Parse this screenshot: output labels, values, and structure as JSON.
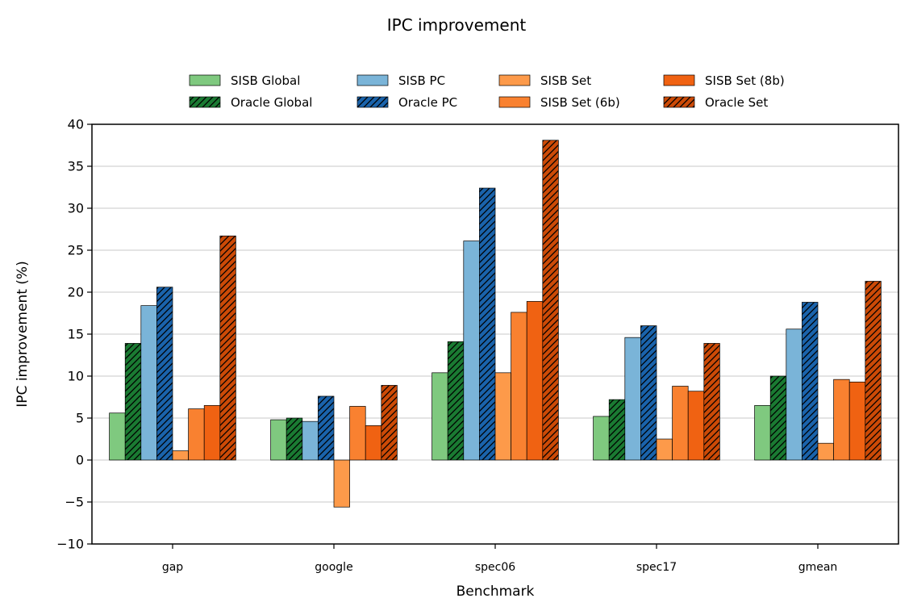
{
  "chart_data": {
    "type": "bar",
    "title": "IPC improvement",
    "xlabel": "Benchmark",
    "ylabel": "IPC improvement (%)",
    "ylim": [
      -10,
      40
    ],
    "yticks": [
      -10,
      -5,
      0,
      5,
      10,
      15,
      20,
      25,
      30,
      35,
      40
    ],
    "ytick_labels": [
      "−10",
      "−5",
      "0",
      "5",
      "10",
      "15",
      "20",
      "25",
      "30",
      "35",
      "40"
    ],
    "grid": "y-major",
    "legend_position": "top-center",
    "categories": [
      "gap",
      "google",
      "spec06",
      "spec17",
      "gmean"
    ],
    "series": [
      {
        "name": "SISB Global",
        "color": "#7fc97f",
        "hatch": false,
        "values": [
          5.6,
          4.8,
          10.4,
          5.2,
          6.5
        ]
      },
      {
        "name": "Oracle Global",
        "color": "#1a7a32",
        "hatch": true,
        "values": [
          13.9,
          5.0,
          14.1,
          7.2,
          10.0
        ]
      },
      {
        "name": "SISB PC",
        "color": "#7ab4d8",
        "hatch": false,
        "values": [
          18.4,
          4.6,
          26.1,
          14.6,
          15.6
        ]
      },
      {
        "name": "Oracle PC",
        "color": "#1a63ab",
        "hatch": true,
        "values": [
          20.6,
          7.6,
          32.4,
          16.0,
          18.8
        ]
      },
      {
        "name": "SISB Set",
        "color": "#fd9a4a",
        "hatch": false,
        "values": [
          1.1,
          -5.6,
          10.4,
          2.5,
          2.0
        ]
      },
      {
        "name": "SISB Set (6b)",
        "color": "#f98130",
        "hatch": false,
        "values": [
          6.1,
          6.4,
          17.6,
          8.8,
          9.6
        ]
      },
      {
        "name": "SISB Set (8b)",
        "color": "#f06212",
        "hatch": false,
        "values": [
          6.5,
          4.1,
          18.9,
          8.2,
          9.3
        ]
      },
      {
        "name": "Oracle Set",
        "color": "#cc4a07",
        "hatch": true,
        "values": [
          26.7,
          8.9,
          38.1,
          13.9,
          21.3
        ]
      }
    ]
  }
}
